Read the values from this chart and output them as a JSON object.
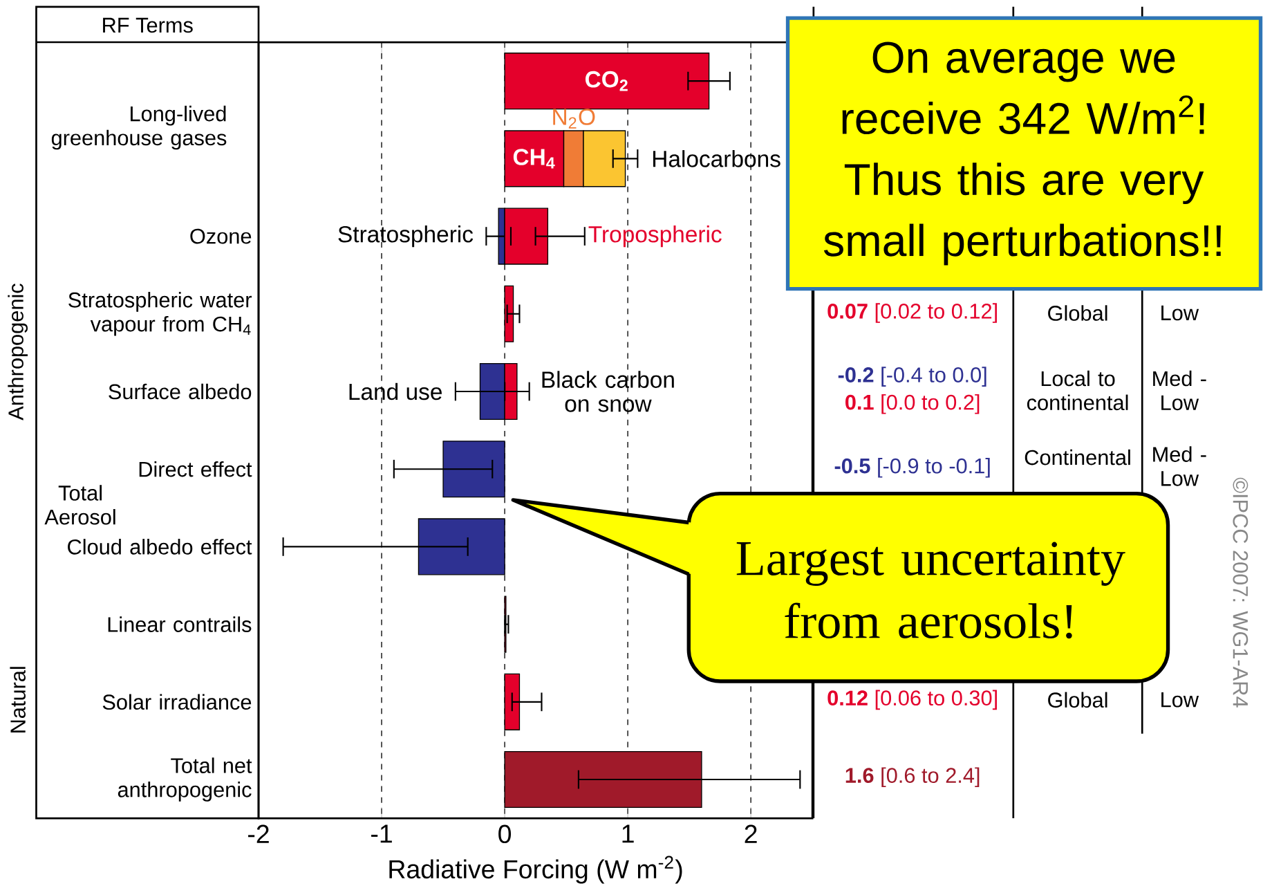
{
  "chart_data": {
    "type": "bar",
    "orientation": "horizontal",
    "stacked": true,
    "categories": [
      null,
      null,
      "Ozone",
      "Stratospheric water vapour from CH$_{4}$",
      "Surface albedo",
      "Direct effect",
      "Cloud albedo effect",
      "Linear contrails",
      "Solar irradiance",
      "Total net anthropogenic"
    ],
    "series": [
      {
        "name": "CO$_{2}$",
        "color": "#e4002b",
        "values": [
          1.66,
          null,
          null,
          null,
          null,
          null,
          null,
          null,
          null,
          null
        ],
        "errors": [
          [
            1.49,
            1.83
          ],
          null,
          null,
          null,
          null,
          null,
          null,
          null,
          null,
          null
        ]
      },
      {
        "name": "CH$_{4}$",
        "color": "#e4002b",
        "values": [
          null,
          0.48,
          null,
          null,
          null,
          null,
          null,
          null,
          null,
          null
        ]
      },
      {
        "name": "N$_{2}$O",
        "color": "#f07c36",
        "values": [
          null,
          0.16,
          null,
          null,
          null,
          null,
          null,
          null,
          null,
          null
        ]
      },
      {
        "name": "Halocarbons",
        "color": "#fbc531",
        "values": [
          null,
          0.34,
          null,
          null,
          null,
          null,
          null,
          null,
          null,
          null
        ],
        "errors": [
          null,
          [
            0.88,
            1.08
          ],
          null,
          null,
          null,
          null,
          null,
          null,
          null,
          null
        ]
      },
      {
        "name": "Stratospheric",
        "color": "#2e3192",
        "values": [
          null,
          null,
          -0.05,
          null,
          null,
          null,
          null,
          null,
          null,
          null
        ],
        "errors": [
          null,
          null,
          [
            -0.15,
            0.05
          ],
          null,
          null,
          null,
          null,
          null,
          null,
          null
        ]
      },
      {
        "name": "Tropospheric",
        "color": "#e4002b",
        "values": [
          null,
          null,
          0.35,
          null,
          null,
          null,
          null,
          null,
          null,
          null
        ],
        "errors": [
          null,
          null,
          [
            0.25,
            0.65
          ],
          null,
          null,
          null,
          null,
          null,
          null,
          null
        ]
      },
      {
        "color": "#e4002b",
        "values": [
          null,
          null,
          null,
          0.07,
          null,
          null,
          null,
          0.01,
          0.12,
          null
        ],
        "errors": [
          null,
          null,
          null,
          [
            0.02,
            0.12
          ],
          null,
          null,
          null,
          [
            0.003,
            0.03
          ],
          [
            0.06,
            0.3
          ],
          null
        ]
      },
      {
        "name": "Land use",
        "color": "#2e3192",
        "values": [
          null,
          null,
          null,
          null,
          -0.2,
          null,
          null,
          null,
          null,
          null
        ],
        "errors": [
          null,
          null,
          null,
          null,
          [
            -0.4,
            0.0
          ],
          null,
          null,
          null,
          null,
          null
        ]
      },
      {
        "name": "Black carbon on snow",
        "color": "#e4002b",
        "values": [
          null,
          null,
          null,
          null,
          0.1,
          null,
          null,
          null,
          null,
          null
        ],
        "errors": [
          null,
          null,
          null,
          null,
          [
            0.0,
            0.2
          ],
          null,
          null,
          null,
          null,
          null
        ]
      },
      {
        "color": "#2e3192",
        "values": [
          null,
          null,
          null,
          null,
          null,
          -0.5,
          -0.7,
          null,
          null,
          null
        ],
        "errors": [
          null,
          null,
          null,
          null,
          null,
          [
            -0.9,
            -0.1
          ],
          [
            -1.8,
            -0.3
          ],
          null,
          null,
          null
        ]
      },
      {
        "color": "#a01a2a",
        "values": [
          null,
          null,
          null,
          null,
          null,
          null,
          null,
          null,
          null,
          1.6
        ],
        "errors": [
          null,
          null,
          null,
          null,
          null,
          null,
          null,
          null,
          null,
          [
            0.6,
            2.4
          ]
        ]
      }
    ],
    "xlim": [
      -2,
      2.5
    ],
    "xticks": [
      -2,
      -1,
      0,
      1,
      2
    ],
    "grid": "x",
    "xlabel": "Radiative Forcing  (W m$^{-2}$)",
    "annotations": [
      "RF Terms",
      "Long-lived greenhouse gases",
      "Total Aerosol",
      "Anthropogenic",
      "Natural",
      "**0.07** [0.02 to 0.12]",
      "Global",
      "Low",
      "**-0.2** [-0.4 to 0.0]",
      "**0.1** [0.0 to 0.2]",
      "Local to continental",
      "Med - Low",
      "**-0.5** [-0.9 to -0.1]",
      "Continental",
      "Med - Low",
      "**0.12** [0.06 to 0.30]",
      "Global",
      "Low",
      "**1.6** [0.6 to 2.4]",
      "©IPCC 2007: WG1-AR4",
      "On average we receive 342 W/m$^{2}$! Thus this are very small perturbations!!",
      "Largest uncertainty from aerosols!"
    ]
  }
}
